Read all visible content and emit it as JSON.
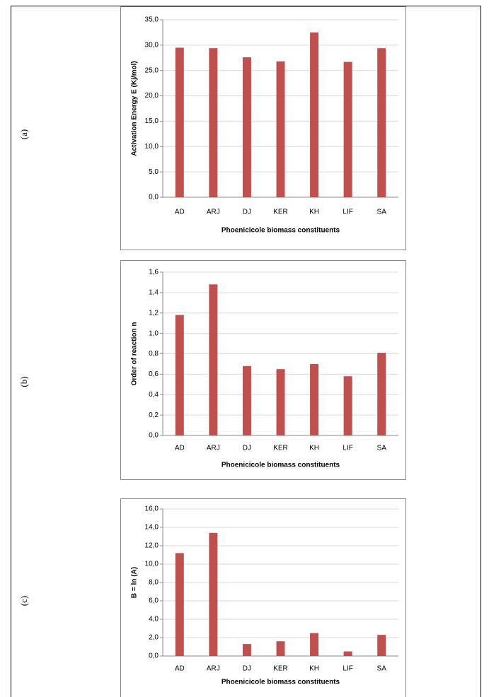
{
  "chart_data": [
    {
      "type": "bar",
      "panel_label": "(a)",
      "y_label": "Activation Energy E (Kj/mol)",
      "x_label": "Phoenicicole biomass constituents",
      "categories": [
        "AD",
        "ARJ",
        "DJ",
        "KER",
        "KH",
        "LIF",
        "SA"
      ],
      "values": [
        29.5,
        29.4,
        27.6,
        26.8,
        32.5,
        26.7,
        29.4
      ],
      "color": "#c0504d",
      "ylim": [
        0,
        35
      ],
      "yticks": [
        {
          "value": 0,
          "label": "0,0"
        },
        {
          "value": 5,
          "label": "5,0"
        },
        {
          "value": 10,
          "label": "10,0"
        },
        {
          "value": 15,
          "label": "15,0"
        },
        {
          "value": 20,
          "label": "20,0"
        },
        {
          "value": 25,
          "label": "25,0"
        },
        {
          "value": 30,
          "label": "30,0"
        },
        {
          "value": 35,
          "label": "35,0"
        }
      ],
      "grid": true
    },
    {
      "type": "bar",
      "panel_label": "(b)",
      "y_label": "Order of reaction n",
      "x_label": "Phoenicicole biomass constituents",
      "categories": [
        "AD",
        "ARJ",
        "DJ",
        "KER",
        "KH",
        "LIF",
        "SA"
      ],
      "values": [
        1.18,
        1.48,
        0.68,
        0.65,
        0.7,
        0.58,
        0.81
      ],
      "color": "#c0504d",
      "ylim": [
        0,
        1.6
      ],
      "yticks": [
        {
          "value": 0,
          "label": "0,0"
        },
        {
          "value": 0.2,
          "label": "0,2"
        },
        {
          "value": 0.4,
          "label": "0,4"
        },
        {
          "value": 0.6,
          "label": "0,6"
        },
        {
          "value": 0.8,
          "label": "0,8"
        },
        {
          "value": 1,
          "label": "1,0"
        },
        {
          "value": 1.2,
          "label": "1,2"
        },
        {
          "value": 1.4,
          "label": "1,4"
        },
        {
          "value": 1.6,
          "label": "1,6"
        }
      ],
      "grid": true
    },
    {
      "type": "bar",
      "panel_label": "(c)",
      "y_label": "B = ln (A)",
      "x_label": "Phoenicicole biomass constituents",
      "categories": [
        "AD",
        "ARJ",
        "DJ",
        "KER",
        "KH",
        "LIF",
        "SA"
      ],
      "values": [
        11.2,
        13.4,
        1.3,
        1.6,
        2.5,
        0.5,
        2.3
      ],
      "color": "#c0504d",
      "ylim": [
        0,
        16
      ],
      "yticks": [
        {
          "value": 0,
          "label": "0,0"
        },
        {
          "value": 2,
          "label": "2,0"
        },
        {
          "value": 4,
          "label": "4,0"
        },
        {
          "value": 6,
          "label": "6,0"
        },
        {
          "value": 8,
          "label": "8,0"
        },
        {
          "value": 10,
          "label": "10,0"
        },
        {
          "value": 12,
          "label": "12,0"
        },
        {
          "value": 14,
          "label": "14,0"
        },
        {
          "value": 16,
          "label": "16,0"
        }
      ],
      "grid": true
    }
  ]
}
